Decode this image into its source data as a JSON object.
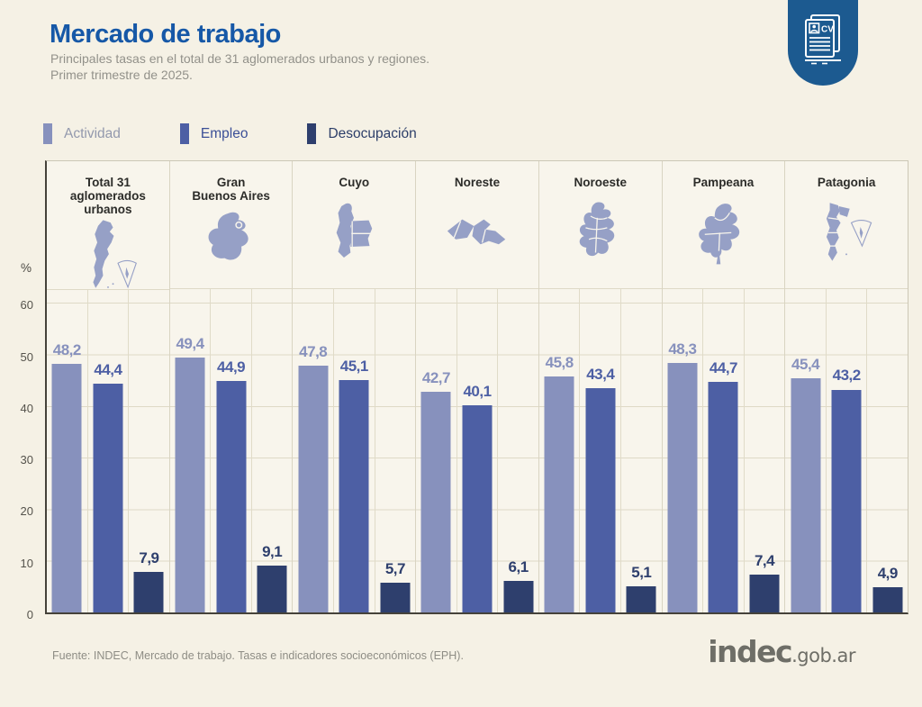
{
  "page": {
    "background": "#f5f1e5"
  },
  "header": {
    "title": "Mercado de trabajo",
    "title_color": "#1658a7",
    "subtitle_line1": "Principales tasas en el total de 31 aglomerados urbanos y regiones.",
    "subtitle_line2": "Primer trimestre de 2025.",
    "badge": {
      "color": "#1c5a90",
      "icon": "cv-document-icon",
      "cv_label": "CV"
    }
  },
  "legend": {
    "items": [
      {
        "label": "Actividad",
        "swatch_color": "#8791bd",
        "text_color": "#9399ad"
      },
      {
        "label": "Empleo",
        "swatch_color": "#4d5fa4",
        "text_color": "#3b4f97"
      },
      {
        "label": "Desocupación",
        "swatch_color": "#2e3f6d",
        "text_color": "#2c3e69"
      }
    ]
  },
  "y_axis": {
    "unit_label": "%",
    "tick_values": [
      60,
      50,
      40,
      30,
      20,
      10,
      0
    ],
    "max": 63
  },
  "chart_data": {
    "type": "bar",
    "title": "Mercado de trabajo",
    "subtitle": "Principales tasas en el total de 31 aglomerados urbanos y regiones. Primer trimestre de 2025.",
    "ylabel": "%",
    "ylim": [
      0,
      63
    ],
    "grid": true,
    "legend_position": "top-left",
    "categories": [
      "Total 31 aglomerados urbanos",
      "Gran Buenos Aires",
      "Cuyo",
      "Noreste",
      "Noroeste",
      "Pampeana",
      "Patagonia"
    ],
    "category_label_lines": [
      [
        "Total 31",
        "aglomerados",
        "urbanos"
      ],
      [
        "Gran",
        "Buenos Aires"
      ],
      [
        "Cuyo"
      ],
      [
        "Noreste"
      ],
      [
        "Noroeste"
      ],
      [
        "Pampeana"
      ],
      [
        "Patagonia"
      ]
    ],
    "map_icons": [
      "map-argentina-icon",
      "map-gran-buenos-aires-icon",
      "map-cuyo-icon",
      "map-noreste-icon",
      "map-noroeste-icon",
      "map-pampeana-icon",
      "map-patagonia-icon"
    ],
    "map_color": "#96a0c6",
    "series": [
      {
        "name": "Actividad",
        "color": "#8791bd",
        "values": [
          48.2,
          49.4,
          47.8,
          42.7,
          45.8,
          48.3,
          45.4
        ],
        "labels": [
          "48,2",
          "49,4",
          "47,8",
          "42,7",
          "45,8",
          "48,3",
          "45,4"
        ]
      },
      {
        "name": "Empleo",
        "color": "#4d5fa4",
        "values": [
          44.4,
          44.9,
          45.1,
          40.1,
          43.4,
          44.7,
          43.2
        ],
        "labels": [
          "44,4",
          "44,9",
          "45,1",
          "40,1",
          "43,4",
          "44,7",
          "43,2"
        ]
      },
      {
        "name": "Desocupación",
        "color": "#2e3f6d",
        "values": [
          7.9,
          9.1,
          5.7,
          6.1,
          5.1,
          7.4,
          4.9
        ],
        "labels": [
          "7,9",
          "9,1",
          "5,7",
          "6,1",
          "5,1",
          "7,4",
          "4,9"
        ]
      }
    ]
  },
  "footer": {
    "source": "Fuente: INDEC, Mercado de trabajo. Tasas e indicadores socioeconómicos (EPH).",
    "logo_main": "indec",
    "logo_suffix": ".gob.ar"
  }
}
